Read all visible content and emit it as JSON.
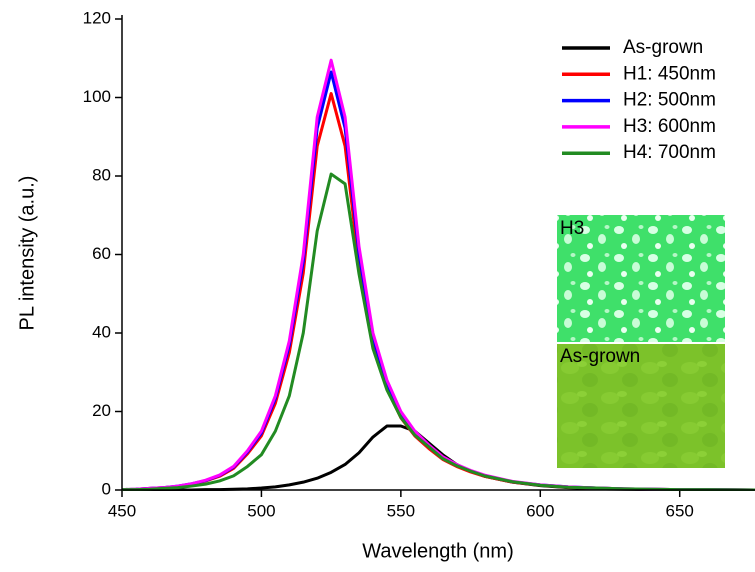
{
  "chart_data": {
    "type": "line",
    "xlabel": "Wavelength (nm)",
    "ylabel": "PL intensity (a.u.)",
    "x": [
      450,
      455,
      460,
      465,
      470,
      475,
      480,
      485,
      490,
      495,
      500,
      505,
      510,
      515,
      520,
      525,
      530,
      535,
      540,
      545,
      550,
      555,
      560,
      565,
      570,
      575,
      580,
      590,
      600,
      610,
      620,
      630,
      640,
      650,
      660,
      677
    ],
    "series": [
      {
        "name": "As-grown",
        "color": "#000000",
        "values": [
          0,
          0,
          0,
          0,
          0,
          0,
          0.1,
          0.1,
          0.2,
          0.3,
          0.5,
          0.8,
          1.3,
          2,
          3,
          4.5,
          6.5,
          9.5,
          13.5,
          16.3,
          16.3,
          15,
          12,
          9,
          6.5,
          4.8,
          3.5,
          2,
          1.1,
          0.6,
          0.3,
          0.2,
          0.1,
          0.1,
          0,
          0
        ]
      },
      {
        "name": "H1: 450nm",
        "color": "#ff0000",
        "values": [
          0.1,
          0.2,
          0.4,
          0.6,
          0.9,
          1.5,
          2.3,
          3.5,
          5.5,
          9.2,
          13.8,
          22.1,
          35,
          55.3,
          87.6,
          101,
          87.6,
          57.2,
          36.9,
          25.8,
          18.4,
          13.8,
          10.6,
          7.8,
          6,
          4.6,
          3.5,
          2,
          1.2,
          0.7,
          0.5,
          0.3,
          0.2,
          0.1,
          0.1,
          0
        ]
      },
      {
        "name": "H2: 500nm",
        "color": "#0000ff",
        "values": [
          0.1,
          0.2,
          0.4,
          0.6,
          1,
          1.6,
          2.4,
          3.7,
          5.8,
          9.7,
          14.5,
          23.3,
          36.9,
          58.2,
          92.2,
          106.5,
          92.2,
          60.1,
          38.8,
          27.2,
          19.4,
          14.6,
          11.2,
          8.2,
          6.3,
          4.9,
          3.7,
          2.1,
          1.3,
          0.8,
          0.5,
          0.3,
          0.2,
          0.1,
          0.1,
          0
        ]
      },
      {
        "name": "H3: 600nm",
        "color": "#ff00ff",
        "values": [
          0.1,
          0.2,
          0.4,
          0.6,
          1,
          1.6,
          2.5,
          3.8,
          6,
          10,
          15,
          24,
          38,
          60,
          95,
          109.5,
          95,
          62,
          40,
          28,
          20,
          15,
          11.5,
          8.5,
          6.5,
          5,
          3.8,
          2.2,
          1.3,
          0.8,
          0.5,
          0.3,
          0.2,
          0.1,
          0.1,
          0
        ]
      },
      {
        "name": "H4: 700nm",
        "color": "#228b22",
        "values": [
          0.1,
          0.1,
          0.2,
          0.4,
          0.6,
          1,
          1.5,
          2.3,
          3.6,
          6,
          9,
          15,
          24,
          40,
          66,
          80.5,
          78,
          55,
          36,
          25.5,
          18.5,
          14,
          11,
          8,
          6.2,
          4.8,
          3.6,
          2.1,
          1.2,
          0.7,
          0.5,
          0.3,
          0.2,
          0.1,
          0.1,
          0
        ]
      }
    ],
    "xlim": [
      450,
      677
    ],
    "ylim": [
      0,
      120
    ],
    "xticks": [
      450,
      500,
      550,
      600,
      650
    ],
    "yticks": [
      0,
      20,
      40,
      60,
      80,
      100,
      120
    ],
    "legend": "upper right",
    "annotations": [
      "H3",
      "As-grown"
    ]
  }
}
